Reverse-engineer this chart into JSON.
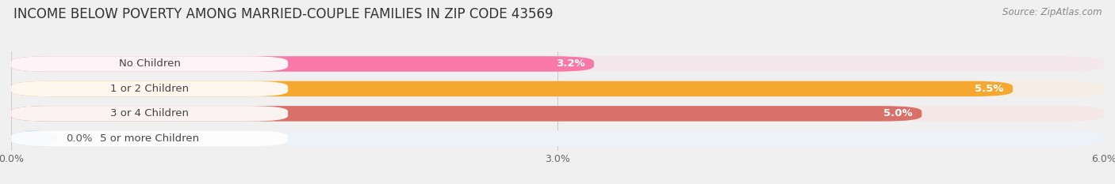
{
  "title": "INCOME BELOW POVERTY AMONG MARRIED-COUPLE FAMILIES IN ZIP CODE 43569",
  "source": "Source: ZipAtlas.com",
  "categories": [
    "No Children",
    "1 or 2 Children",
    "3 or 4 Children",
    "5 or more Children"
  ],
  "values": [
    3.2,
    5.5,
    5.0,
    0.0
  ],
  "bar_colors": [
    "#f879a8",
    "#f5a830",
    "#d9706a",
    "#aac8e8"
  ],
  "bg_colors": [
    "#f5e8ec",
    "#f5ede3",
    "#f5e8e6",
    "#edf2f8"
  ],
  "xlim": [
    0,
    6.0
  ],
  "xticks": [
    0.0,
    3.0,
    6.0
  ],
  "xtick_labels": [
    "0.0%",
    "3.0%",
    "6.0%"
  ],
  "value_labels": [
    "3.2%",
    "5.5%",
    "5.0%",
    "0.0%"
  ],
  "title_fontsize": 12,
  "label_fontsize": 9.5,
  "tick_fontsize": 9,
  "bar_height": 0.62,
  "background_color": "#f0f0f0"
}
